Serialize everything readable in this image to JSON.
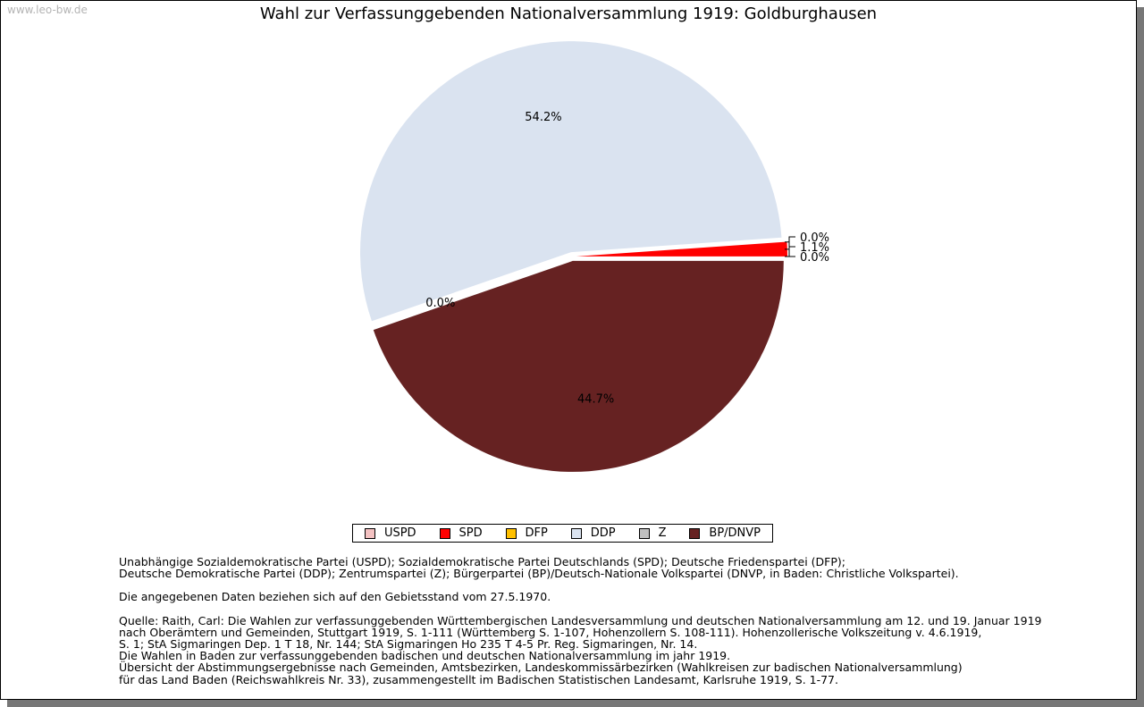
{
  "watermark": "www.leo-bw.de",
  "chart_data": {
    "type": "pie",
    "title": "Wahl zur Verfassunggebenden Nationalversammlung 1919: Goldburghausen",
    "slices": [
      {
        "name": "USPD",
        "value": 0.0,
        "label": "0.0%",
        "color": "#f4c2c2"
      },
      {
        "name": "SPD",
        "value": 1.1,
        "label": "1.1%",
        "color": "#ff0000"
      },
      {
        "name": "DFP",
        "value": 0.0,
        "label": "0.0%",
        "color": "#ffc000"
      },
      {
        "name": "DDP",
        "value": 54.2,
        "label": "54.2%",
        "color": "#dae3f0"
      },
      {
        "name": "Z",
        "value": 0.0,
        "label": "0.0%",
        "color": "#c0c0c0"
      },
      {
        "name": "BP/DNVP",
        "value": 44.7,
        "label": "44.7%",
        "color": "#662222"
      }
    ],
    "legend_position": "bottom"
  },
  "notes": {
    "parties_1": "Unabhängige Sozialdemokratische Partei (USPD); Sozialdemokratische Partei Deutschlands (SPD); Deutsche Friedenspartei (DFP);",
    "parties_2": "Deutsche Demokratische Partei (DDP); Zentrumspartei (Z); Bürgerpartei (BP)/Deutsch-Nationale Volkspartei (DNVP, in Baden: Christliche Volkspartei).",
    "territory": "Die angegebenen Daten beziehen sich auf den Gebietsstand vom 27.5.1970.",
    "source_1": "Quelle: Raith, Carl: Die Wahlen zur verfassunggebenden Württembergischen Landesversammlung und deutschen Nationalversammlung am 12. und 19. Januar 1919",
    "source_2": "nach Oberämtern und Gemeinden, Stuttgart 1919, S. 1-111 (Württemberg S. 1-107, Hohenzollern S. 108-111). Hohenzollerische Volkszeitung v. 4.6.1919,",
    "source_3": "S. 1; StA Sigmaringen Dep. 1 T 18, Nr. 144; StA Sigmaringen Ho 235 T 4-5 Pr. Reg. Sigmaringen, Nr. 14.",
    "source_4": "Die Wahlen in Baden zur verfassunggebenden badischen und deutschen Nationalversammlung im jahr 1919.",
    "source_5": "Übersicht der Abstimmungsergebnisse nach Gemeinden, Amtsbezirken, Landeskommissärbezirken (Wahlkreisen zur badischen Nationalversammlung)",
    "source_6": "für das Land Baden (Reichswahlkreis Nr. 33), zusammengestellt im Badischen Statistischen Landesamt, Karlsruhe 1919, S. 1-77."
  }
}
